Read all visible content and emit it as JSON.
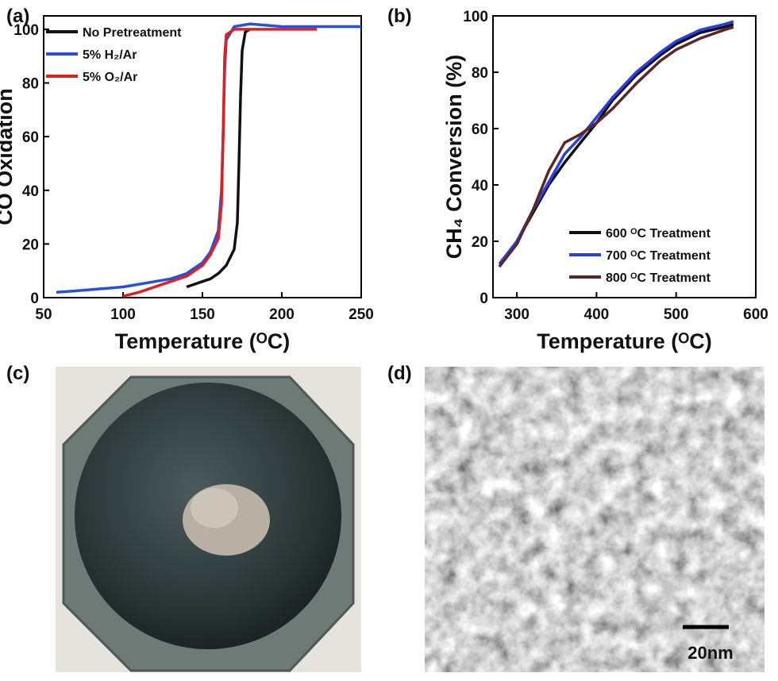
{
  "panel_labels": [
    "(a)",
    "(b)",
    "(c)",
    "(d)"
  ],
  "scale_bar": "20nm",
  "chart_data": [
    {
      "type": "line",
      "xlabel": "Temperature (ᴼC)",
      "ylabel": "CO Oxidation",
      "xlim": [
        50,
        250
      ],
      "xticks": [
        50,
        100,
        150,
        200,
        250
      ],
      "ylim": [
        0,
        105
      ],
      "yticks": [
        0,
        20,
        40,
        60,
        80,
        100
      ],
      "legend": "upper left",
      "series": [
        {
          "name": "No Pretreatment",
          "color": "#111111",
          "x": [
            140,
            145,
            150,
            155,
            160,
            165,
            170,
            172,
            173,
            174,
            175,
            177,
            180
          ],
          "values": [
            4,
            5,
            6,
            7,
            9,
            12,
            18,
            28,
            50,
            75,
            92,
            99,
            100
          ]
        },
        {
          "name": "5% H₂/Ar",
          "color": "#2a4fe0",
          "x": [
            58,
            70,
            80,
            90,
            100,
            110,
            120,
            130,
            140,
            150,
            155,
            160,
            162,
            163,
            164,
            165,
            170,
            180,
            200,
            220,
            250
          ],
          "values": [
            2,
            2.5,
            3,
            3.5,
            4,
            5,
            6,
            7,
            9,
            13,
            17,
            25,
            40,
            60,
            85,
            96,
            101,
            102,
            101,
            101,
            101
          ]
        },
        {
          "name": "5% O₂/Ar",
          "color": "#e02020",
          "x": [
            100,
            110,
            120,
            130,
            140,
            150,
            155,
            160,
            162,
            163,
            164,
            165,
            170,
            180,
            200,
            222
          ],
          "values": [
            0.5,
            2,
            4,
            6,
            8,
            12,
            16,
            22,
            35,
            60,
            90,
            98,
            100,
            100,
            100,
            100
          ]
        }
      ]
    },
    {
      "type": "line",
      "xlabel": "Temperature (ᴼC)",
      "ylabel": "CH₄ Conversion (%)",
      "xlim": [
        270,
        600
      ],
      "xticks": [
        300,
        400,
        500,
        600
      ],
      "ylim": [
        0,
        100
      ],
      "yticks": [
        0,
        20,
        40,
        60,
        80,
        100
      ],
      "legend": "lower right",
      "series": [
        {
          "name": "600 ᴼC Treatment",
          "color": "#111111",
          "x": [
            278,
            300,
            320,
            340,
            360,
            380,
            400,
            420,
            450,
            480,
            500,
            530,
            560,
            572
          ],
          "values": [
            11,
            20,
            30,
            40,
            48,
            55,
            62,
            70,
            79,
            86,
            90,
            94,
            96,
            97
          ]
        },
        {
          "name": "700 ᴼC Treatment",
          "color": "#2a3fe0",
          "x": [
            278,
            300,
            320,
            340,
            360,
            380,
            400,
            420,
            450,
            480,
            500,
            530,
            560,
            572
          ],
          "values": [
            12,
            20,
            31,
            41,
            51,
            57,
            64,
            71,
            80,
            87,
            91,
            95,
            97,
            98
          ]
        },
        {
          "name": "800 ᴼC Treatment",
          "color": "#5a2626",
          "x": [
            278,
            300,
            320,
            340,
            360,
            380,
            400,
            420,
            450,
            480,
            500,
            530,
            560,
            572
          ],
          "values": [
            11,
            19,
            31,
            45,
            55,
            58,
            62,
            67,
            76,
            84,
            88,
            92,
            95,
            96
          ]
        }
      ]
    }
  ]
}
